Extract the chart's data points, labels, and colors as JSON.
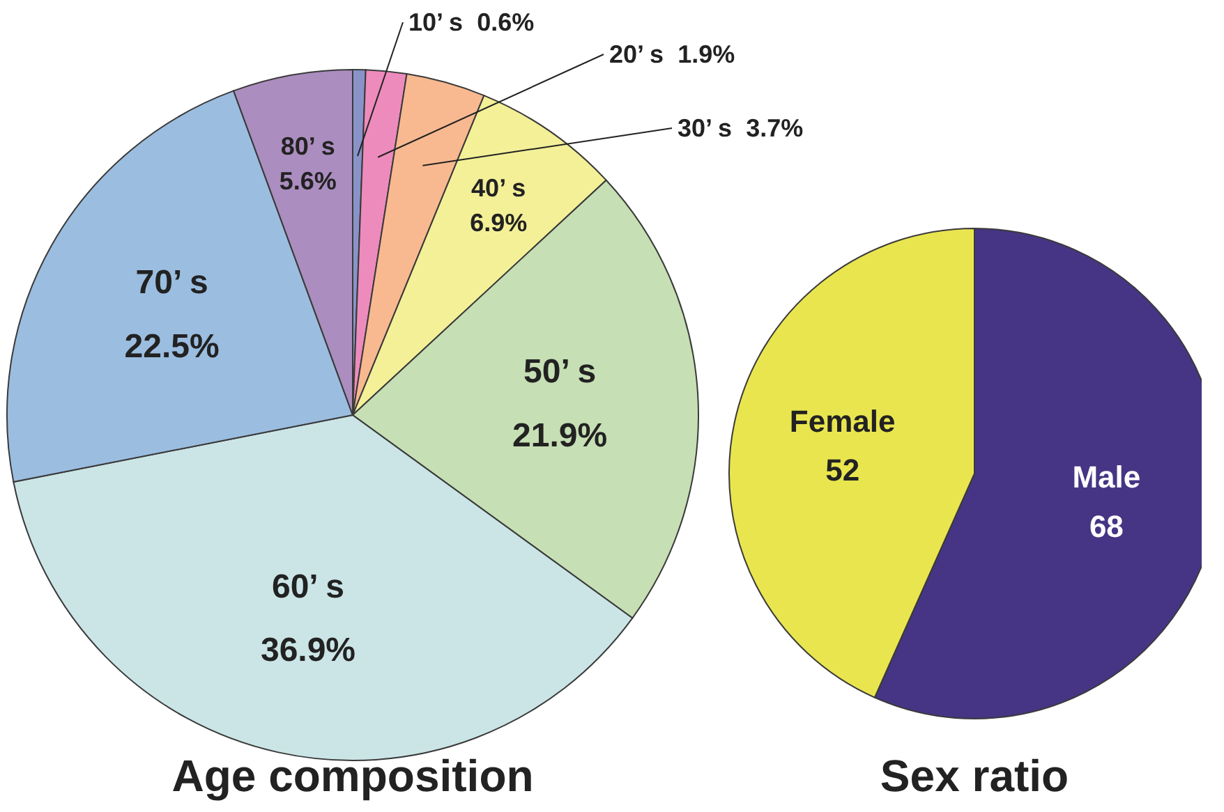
{
  "chart_data": [
    {
      "type": "pie",
      "title": "Age composition",
      "categories": [
        "10’ s",
        "20’ s",
        "30’ s",
        "40’ s",
        "50’ s",
        "60’ s",
        "70’ s",
        "80’ s"
      ],
      "values": [
        0.6,
        1.9,
        3.7,
        6.9,
        21.9,
        36.9,
        22.5,
        5.6
      ],
      "value_labels": [
        "0.6%",
        "1.9%",
        "3.7%",
        "6.9%",
        "21.9%",
        "36.9%",
        "22.5%",
        "5.6%"
      ],
      "colors": [
        "#8a93c8",
        "#ee8bbd",
        "#f8b990",
        "#f3f098",
        "#c6dfb4",
        "#cbe5e6",
        "#9bbde0",
        "#ab8dbf"
      ]
    },
    {
      "type": "pie",
      "title": "Sex ratio",
      "categories": [
        "Male",
        "Female"
      ],
      "values": [
        68,
        52
      ],
      "data_labels": true,
      "colors": [
        "#463584",
        "#e9e54f"
      ]
    }
  ]
}
